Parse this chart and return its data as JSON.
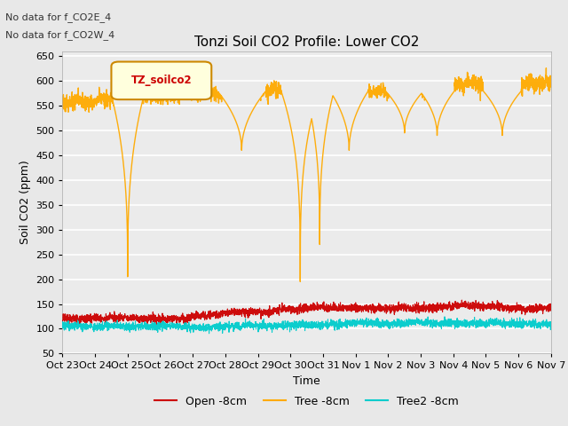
{
  "title": "Tonzi Soil CO2 Profile: Lower CO2",
  "xlabel": "Time",
  "ylabel": "Soil CO2 (ppm)",
  "ylim": [
    50,
    660
  ],
  "yticks": [
    50,
    100,
    150,
    200,
    250,
    300,
    350,
    400,
    450,
    500,
    550,
    600,
    650
  ],
  "note1": "No data for f_CO2E_4",
  "note2": "No data for f_CO2W_4",
  "legend_label": "TZ_soilco2",
  "series_labels": [
    "Open -8cm",
    "Tree -8cm",
    "Tree2 -8cm"
  ],
  "series_colors": [
    "#cc0000",
    "#ffaa00",
    "#00cccc"
  ],
  "background_color": "#e8e8e8",
  "plot_bg_color": "#ebebeb",
  "x_tick_labels": [
    "Oct 23",
    "Oct 24",
    "Oct 25",
    "Oct 26",
    "Oct 27",
    "Oct 28",
    "Oct 29",
    "Oct 30",
    "Oct 31",
    "Nov 1",
    "Nov 2",
    "Nov 3",
    "Nov 4",
    "Nov 5",
    "Nov 6",
    "Nov 7"
  ],
  "num_points": 3360,
  "seed": 42,
  "open_base": 135,
  "tree2_base": 108,
  "tree_base": 580
}
